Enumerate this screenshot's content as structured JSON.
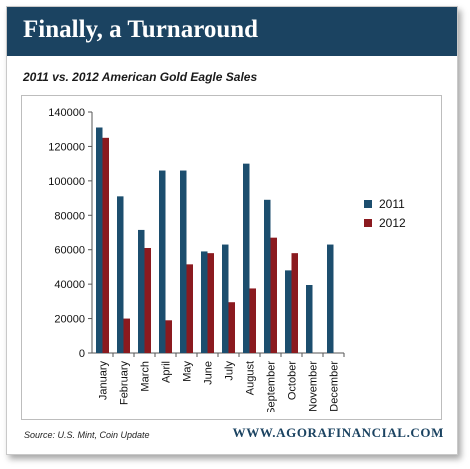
{
  "header": {
    "title": "Finally, a Turnaround",
    "subtitle": "2011 vs. 2012 American Gold Eagle Sales"
  },
  "footer": {
    "source": "Source: U.S. Mint, Coin Update",
    "site": "WWW.AGORAFINANCIAL.COM"
  },
  "colors": {
    "banner": "#1b4361",
    "series_2011": "#1c4e6e",
    "series_2012": "#8b1a1f"
  },
  "chart_data": {
    "type": "bar",
    "title": "2011 vs. 2012 American Gold Eagle Sales",
    "xlabel": "",
    "ylabel": "",
    "categories": [
      "January",
      "February",
      "March",
      "April",
      "May",
      "June",
      "July",
      "August",
      "September",
      "October",
      "November",
      "December"
    ],
    "series": [
      {
        "name": "2011",
        "color": "#1c4e6e",
        "values": [
          131000,
          91000,
          71500,
          106000,
          106000,
          59000,
          63000,
          110000,
          89000,
          48000,
          39500,
          63000
        ]
      },
      {
        "name": "2012",
        "color": "#8b1a1f",
        "values": [
          125000,
          20000,
          61000,
          19000,
          51500,
          58000,
          29500,
          37500,
          67000,
          58000,
          null,
          null
        ]
      }
    ],
    "ylim": [
      0,
      140000
    ],
    "yticks": [
      "0",
      "20000",
      "40000",
      "60000",
      "80000",
      "100000",
      "120000",
      "140000"
    ],
    "ytick_values": [
      0,
      20000,
      40000,
      60000,
      80000,
      100000,
      120000,
      140000
    ],
    "grid": false,
    "legend_position": "right"
  }
}
